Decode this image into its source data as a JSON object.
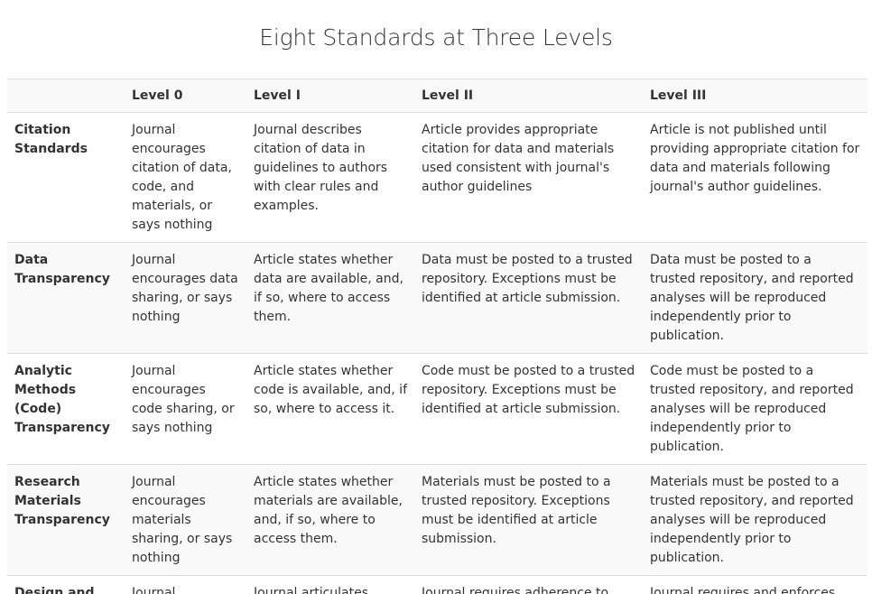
{
  "title": "Eight Standards at Three Levels",
  "table": {
    "headers": [
      "",
      "Level 0",
      "Level I",
      "Level II",
      "Level III"
    ],
    "rows": [
      {
        "standard": "Citation Standards",
        "level0": "Journal encourages citation of data, code, and materials, or says nothing",
        "level1": "Journal describes citation of data in guidelines to authors with clear rules and examples.",
        "level2": "Article provides appropriate citation for data and materials used consistent with journal's author guidelines",
        "level3": "Article is not published until providing appropriate citation for data and materials following journal's author guidelines."
      },
      {
        "standard": "Data Transparency",
        "level0": "Journal encourages data sharing, or says nothing",
        "level1": "Article states whether data are available, and, if so, where to access them.",
        "level2": "Data must be posted to a trusted repository. Exceptions must be identified at article submission.",
        "level3": "Data must be posted to a trusted repository, and reported analyses will be reproduced independently prior to publication."
      },
      {
        "standard": "Analytic Methods (Code) Transparency",
        "level0": "Journal encourages code sharing, or says nothing",
        "level1": "Article states whether code is available, and, if so, where to access it.",
        "level2": "Code must be posted to a trusted repository. Exceptions must be identified at article submission.",
        "level3": "Code must be posted to a trusted repository, and reported analyses will be reproduced independently prior to publication."
      },
      {
        "standard": "Research Materials Transparency",
        "level0": "Journal encourages materials sharing, or says nothing",
        "level1": "Article states whether materials are available, and, if so, where to access them.",
        "level2": "Materials must be posted to a trusted repository. Exceptions must be identified at article submission.",
        "level3": "Materials must be posted to a trusted repository, and reported analyses will be reproduced independently prior to publication."
      },
      {
        "standard": "Design and",
        "level0": "Journal",
        "level1": "Journal articulates",
        "level2": "Journal requires adherence to",
        "level3": "Journal requires and enforces"
      }
    ]
  }
}
